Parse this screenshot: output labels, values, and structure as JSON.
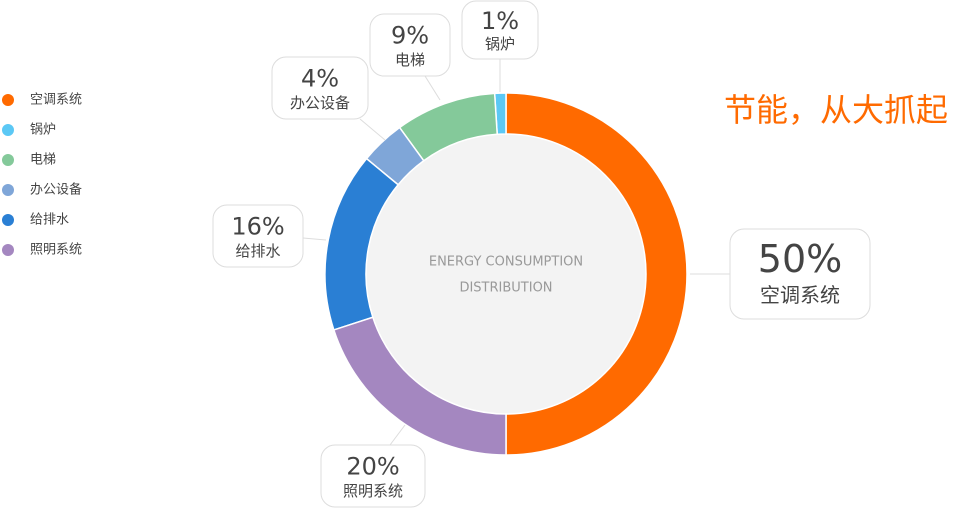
{
  "chart_data": {
    "type": "donut",
    "title": "节能，从大抓起",
    "center_text": [
      "ENERGY CONSUMPTION",
      "DISTRIBUTION"
    ],
    "categories": [
      "空调系统",
      "锅炉",
      "电梯",
      "办公设备",
      "给排水",
      "照明系统"
    ],
    "values": [
      50,
      1,
      9,
      4,
      16,
      20
    ],
    "value_labels": [
      "50%",
      "1%",
      "9%",
      "4%",
      "16%",
      "20%"
    ],
    "colors": [
      "#ff6a00",
      "#5bc8f5",
      "#84c99a",
      "#7fa6d8",
      "#2a7fd4",
      "#a487c0"
    ]
  }
}
